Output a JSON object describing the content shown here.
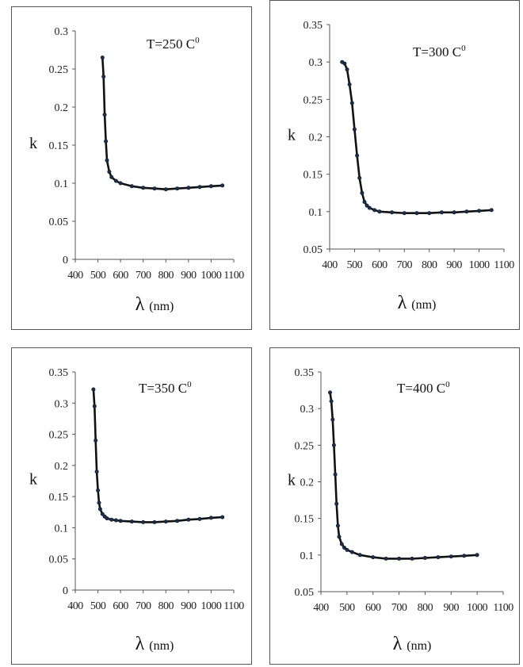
{
  "chart_data": [
    {
      "type": "scatter",
      "title": "T=250 C",
      "title_sup": "0",
      "xlabel": "λ",
      "xlabel_unit": "(nm)",
      "ylabel": "k",
      "xlim": [
        400,
        1100
      ],
      "ylim": [
        0,
        0.3
      ],
      "xticks": [
        400,
        500,
        600,
        700,
        800,
        900,
        1000,
        1100
      ],
      "yticks": [
        0,
        0.05,
        0.1,
        0.15,
        0.2,
        0.25,
        0.3
      ],
      "grid": false,
      "series": [
        {
          "x": [
            520,
            525,
            530,
            535,
            540,
            550,
            560,
            580,
            600,
            650,
            700,
            750,
            800,
            850,
            900,
            950,
            1000,
            1050
          ],
          "y": [
            0.265,
            0.24,
            0.19,
            0.155,
            0.13,
            0.115,
            0.108,
            0.103,
            0.1,
            0.096,
            0.094,
            0.093,
            0.092,
            0.093,
            0.094,
            0.095,
            0.096,
            0.097
          ]
        }
      ]
    },
    {
      "type": "scatter",
      "title": "T=300 C",
      "title_sup": "0",
      "xlabel": "λ",
      "xlabel_unit": "(nm)",
      "ylabel": "k",
      "xlim": [
        400,
        1100
      ],
      "ylim": [
        0.05,
        0.35
      ],
      "xticks": [
        400,
        500,
        600,
        700,
        800,
        900,
        1000,
        1100
      ],
      "yticks": [
        0.05,
        0.1,
        0.15,
        0.2,
        0.25,
        0.3,
        0.35
      ],
      "grid": false,
      "series": [
        {
          "x": [
            450,
            460,
            470,
            480,
            490,
            500,
            510,
            520,
            530,
            540,
            550,
            560,
            580,
            600,
            650,
            700,
            750,
            800,
            850,
            900,
            950,
            1000,
            1050
          ],
          "y": [
            0.3,
            0.298,
            0.29,
            0.27,
            0.245,
            0.21,
            0.175,
            0.145,
            0.125,
            0.113,
            0.108,
            0.105,
            0.102,
            0.1,
            0.099,
            0.098,
            0.098,
            0.098,
            0.099,
            0.099,
            0.1,
            0.101,
            0.102
          ]
        }
      ]
    },
    {
      "type": "scatter",
      "title": "T=350 C",
      "title_sup": "0",
      "xlabel": "λ",
      "xlabel_unit": "(nm)",
      "ylabel": "k",
      "xlim": [
        400,
        1100
      ],
      "ylim": [
        0,
        0.35
      ],
      "xticks": [
        400,
        500,
        600,
        700,
        800,
        900,
        1000,
        1100
      ],
      "yticks": [
        0,
        0.05,
        0.1,
        0.15,
        0.2,
        0.25,
        0.3,
        0.35
      ],
      "grid": false,
      "series": [
        {
          "x": [
            480,
            485,
            490,
            495,
            500,
            505,
            510,
            520,
            530,
            540,
            560,
            580,
            600,
            650,
            700,
            750,
            800,
            850,
            900,
            950,
            1000,
            1050
          ],
          "y": [
            0.322,
            0.295,
            0.24,
            0.19,
            0.16,
            0.14,
            0.13,
            0.122,
            0.118,
            0.115,
            0.113,
            0.112,
            0.111,
            0.11,
            0.109,
            0.109,
            0.11,
            0.111,
            0.113,
            0.114,
            0.116,
            0.117
          ]
        }
      ]
    },
    {
      "type": "scatter",
      "title": "T=400 C",
      "title_sup": "0",
      "xlabel": "λ",
      "xlabel_unit": "(nm)",
      "ylabel": "k",
      "xlim": [
        400,
        1100
      ],
      "ylim": [
        0.05,
        0.35
      ],
      "xticks": [
        400,
        500,
        600,
        700,
        800,
        900,
        1000,
        1100
      ],
      "yticks": [
        0.05,
        0.1,
        0.15,
        0.2,
        0.25,
        0.3,
        0.35
      ],
      "grid": false,
      "series": [
        {
          "x": [
            435,
            440,
            445,
            450,
            455,
            460,
            465,
            470,
            480,
            490,
            500,
            520,
            550,
            600,
            650,
            700,
            750,
            800,
            850,
            900,
            950,
            1000
          ],
          "y": [
            0.322,
            0.31,
            0.285,
            0.25,
            0.21,
            0.17,
            0.14,
            0.125,
            0.115,
            0.11,
            0.107,
            0.104,
            0.1,
            0.097,
            0.095,
            0.095,
            0.095,
            0.096,
            0.097,
            0.098,
            0.099,
            0.1
          ]
        }
      ]
    }
  ]
}
